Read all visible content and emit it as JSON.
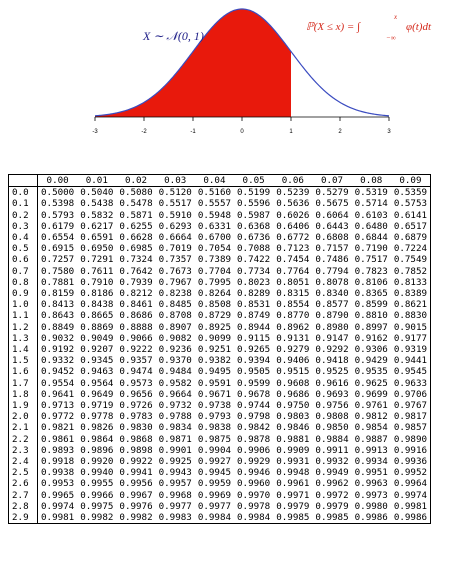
{
  "figure": {
    "dist_label": "X ∼ 𝒩(0, 1)",
    "cdf_label": "ℙ(X ≤ x) = ∫",
    "integral_upper": "x",
    "integral_lower": "−∞",
    "integrand": "φ(t)dt",
    "shade_to": 1,
    "x_ticks": [
      "-3",
      "-2",
      "-1",
      "0",
      "1",
      "2",
      "3"
    ],
    "colors": {
      "fill": "#e8190c",
      "curve": "#3b4cc0",
      "dist_label": "#22228a",
      "cdf_label": "#d42a1c"
    }
  },
  "table": {
    "columns": [
      "",
      "0.00",
      "0.01",
      "0.02",
      "0.03",
      "0.04",
      "0.05",
      "0.06",
      "0.07",
      "0.08",
      "0.09"
    ],
    "rows": [
      [
        "0.0",
        "0.5000",
        "0.5040",
        "0.5080",
        "0.5120",
        "0.5160",
        "0.5199",
        "0.5239",
        "0.5279",
        "0.5319",
        "0.5359"
      ],
      [
        "0.1",
        "0.5398",
        "0.5438",
        "0.5478",
        "0.5517",
        "0.5557",
        "0.5596",
        "0.5636",
        "0.5675",
        "0.5714",
        "0.5753"
      ],
      [
        "0.2",
        "0.5793",
        "0.5832",
        "0.5871",
        "0.5910",
        "0.5948",
        "0.5987",
        "0.6026",
        "0.6064",
        "0.6103",
        "0.6141"
      ],
      [
        "0.3",
        "0.6179",
        "0.6217",
        "0.6255",
        "0.6293",
        "0.6331",
        "0.6368",
        "0.6406",
        "0.6443",
        "0.6480",
        "0.6517"
      ],
      [
        "0.4",
        "0.6554",
        "0.6591",
        "0.6628",
        "0.6664",
        "0.6700",
        "0.6736",
        "0.6772",
        "0.6808",
        "0.6844",
        "0.6879"
      ],
      [
        "0.5",
        "0.6915",
        "0.6950",
        "0.6985",
        "0.7019",
        "0.7054",
        "0.7088",
        "0.7123",
        "0.7157",
        "0.7190",
        "0.7224"
      ],
      [
        "0.6",
        "0.7257",
        "0.7291",
        "0.7324",
        "0.7357",
        "0.7389",
        "0.7422",
        "0.7454",
        "0.7486",
        "0.7517",
        "0.7549"
      ],
      [
        "0.7",
        "0.7580",
        "0.7611",
        "0.7642",
        "0.7673",
        "0.7704",
        "0.7734",
        "0.7764",
        "0.7794",
        "0.7823",
        "0.7852"
      ],
      [
        "0.8",
        "0.7881",
        "0.7910",
        "0.7939",
        "0.7967",
        "0.7995",
        "0.8023",
        "0.8051",
        "0.8078",
        "0.8106",
        "0.8133"
      ],
      [
        "0.9",
        "0.8159",
        "0.8186",
        "0.8212",
        "0.8238",
        "0.8264",
        "0.8289",
        "0.8315",
        "0.8340",
        "0.8365",
        "0.8389"
      ],
      [
        "1.0",
        "0.8413",
        "0.8438",
        "0.8461",
        "0.8485",
        "0.8508",
        "0.8531",
        "0.8554",
        "0.8577",
        "0.8599",
        "0.8621"
      ],
      [
        "1.1",
        "0.8643",
        "0.8665",
        "0.8686",
        "0.8708",
        "0.8729",
        "0.8749",
        "0.8770",
        "0.8790",
        "0.8810",
        "0.8830"
      ],
      [
        "1.2",
        "0.8849",
        "0.8869",
        "0.8888",
        "0.8907",
        "0.8925",
        "0.8944",
        "0.8962",
        "0.8980",
        "0.8997",
        "0.9015"
      ],
      [
        "1.3",
        "0.9032",
        "0.9049",
        "0.9066",
        "0.9082",
        "0.9099",
        "0.9115",
        "0.9131",
        "0.9147",
        "0.9162",
        "0.9177"
      ],
      [
        "1.4",
        "0.9192",
        "0.9207",
        "0.9222",
        "0.9236",
        "0.9251",
        "0.9265",
        "0.9279",
        "0.9292",
        "0.9306",
        "0.9319"
      ],
      [
        "1.5",
        "0.9332",
        "0.9345",
        "0.9357",
        "0.9370",
        "0.9382",
        "0.9394",
        "0.9406",
        "0.9418",
        "0.9429",
        "0.9441"
      ],
      [
        "1.6",
        "0.9452",
        "0.9463",
        "0.9474",
        "0.9484",
        "0.9495",
        "0.9505",
        "0.9515",
        "0.9525",
        "0.9535",
        "0.9545"
      ],
      [
        "1.7",
        "0.9554",
        "0.9564",
        "0.9573",
        "0.9582",
        "0.9591",
        "0.9599",
        "0.9608",
        "0.9616",
        "0.9625",
        "0.9633"
      ],
      [
        "1.8",
        "0.9641",
        "0.9649",
        "0.9656",
        "0.9664",
        "0.9671",
        "0.9678",
        "0.9686",
        "0.9693",
        "0.9699",
        "0.9706"
      ],
      [
        "1.9",
        "0.9713",
        "0.9719",
        "0.9726",
        "0.9732",
        "0.9738",
        "0.9744",
        "0.9750",
        "0.9756",
        "0.9761",
        "0.9767"
      ],
      [
        "2.0",
        "0.9772",
        "0.9778",
        "0.9783",
        "0.9788",
        "0.9793",
        "0.9798",
        "0.9803",
        "0.9808",
        "0.9812",
        "0.9817"
      ],
      [
        "2.1",
        "0.9821",
        "0.9826",
        "0.9830",
        "0.9834",
        "0.9838",
        "0.9842",
        "0.9846",
        "0.9850",
        "0.9854",
        "0.9857"
      ],
      [
        "2.2",
        "0.9861",
        "0.9864",
        "0.9868",
        "0.9871",
        "0.9875",
        "0.9878",
        "0.9881",
        "0.9884",
        "0.9887",
        "0.9890"
      ],
      [
        "2.3",
        "0.9893",
        "0.9896",
        "0.9898",
        "0.9901",
        "0.9904",
        "0.9906",
        "0.9909",
        "0.9911",
        "0.9913",
        "0.9916"
      ],
      [
        "2.4",
        "0.9918",
        "0.9920",
        "0.9922",
        "0.9925",
        "0.9927",
        "0.9929",
        "0.9931",
        "0.9932",
        "0.9934",
        "0.9936"
      ],
      [
        "2.5",
        "0.9938",
        "0.9940",
        "0.9941",
        "0.9943",
        "0.9945",
        "0.9946",
        "0.9948",
        "0.9949",
        "0.9951",
        "0.9952"
      ],
      [
        "2.6",
        "0.9953",
        "0.9955",
        "0.9956",
        "0.9957",
        "0.9959",
        "0.9960",
        "0.9961",
        "0.9962",
        "0.9963",
        "0.9964"
      ],
      [
        "2.7",
        "0.9965",
        "0.9966",
        "0.9967",
        "0.9968",
        "0.9969",
        "0.9970",
        "0.9971",
        "0.9972",
        "0.9973",
        "0.9974"
      ],
      [
        "2.8",
        "0.9974",
        "0.9975",
        "0.9976",
        "0.9977",
        "0.9977",
        "0.9978",
        "0.9979",
        "0.9979",
        "0.9980",
        "0.9981"
      ],
      [
        "2.9",
        "0.9981",
        "0.9982",
        "0.9982",
        "0.9983",
        "0.9984",
        "0.9984",
        "0.9985",
        "0.9985",
        "0.9986",
        "0.9986"
      ]
    ]
  }
}
